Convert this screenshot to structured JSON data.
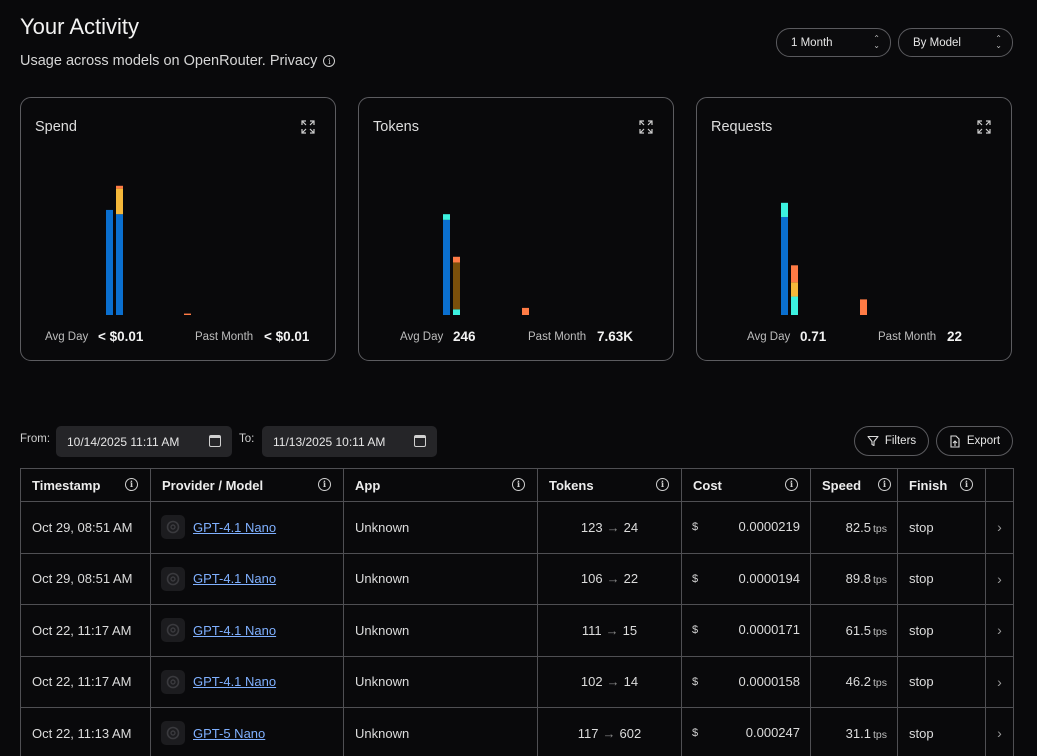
{
  "header": {
    "title": "Your Activity",
    "subtitle": "Usage across models on OpenRouter. Privacy",
    "range_select": "1 Month",
    "group_select": "By Model"
  },
  "cards": [
    {
      "title": "Spend",
      "avg_label": "Avg Day",
      "avg_value": "< $0.01",
      "past_label": "Past Month",
      "past_value": "< $0.01"
    },
    {
      "title": "Tokens",
      "avg_label": "Avg Day",
      "avg_value": "246",
      "past_label": "Past Month",
      "past_value": "7.63K"
    },
    {
      "title": "Requests",
      "avg_label": "Avg Day",
      "avg_value": "0.71",
      "past_label": "Past Month",
      "past_value": "22"
    }
  ],
  "chart_data": [
    {
      "type": "bar",
      "stacked": true,
      "series": [
        {
          "color": "#0a6fcf",
          "values": [
            0.74,
            0.71,
            0.0
          ]
        },
        {
          "color": "#f5b83a",
          "values": [
            0.0,
            0.18,
            0.0
          ]
        },
        {
          "color": "#ff7b45",
          "values": [
            0.0,
            0.02,
            0.01
          ]
        }
      ],
      "ylim": [
        0,
        1
      ]
    },
    {
      "type": "bar",
      "stacked": true,
      "series": [
        {
          "color": "#0a6fcf",
          "values": [
            0.67,
            0.0,
            0.0
          ]
        },
        {
          "color": "#3cf2e0",
          "values": [
            0.04,
            0.04,
            0.0
          ]
        },
        {
          "color": "#7a4f0a",
          "values": [
            0.0,
            0.33,
            0.0
          ]
        },
        {
          "color": "#ff7b45",
          "values": [
            0.0,
            0.04,
            0.05
          ]
        }
      ],
      "ylim": [
        0,
        1
      ]
    },
    {
      "type": "bar",
      "stacked": true,
      "series": [
        {
          "color": "#0a6fcf",
          "values": [
            0.69,
            0.0,
            0.0
          ]
        },
        {
          "color": "#3cf2e0",
          "values": [
            0.1,
            0.13,
            0.0
          ]
        },
        {
          "color": "#f5b83a",
          "values": [
            0.0,
            0.1,
            0.0
          ]
        },
        {
          "color": "#ff7b45",
          "values": [
            0.0,
            0.12,
            0.11
          ]
        }
      ],
      "ylim": [
        0,
        1
      ]
    }
  ],
  "filters": {
    "from_label": "From:",
    "from_value": "10/14/2025 11:11 AM",
    "to_label": "To:",
    "to_value": "11/13/2025 10:11 AM",
    "filters_button": "Filters",
    "export_button": "Export"
  },
  "table": {
    "headers": [
      "Timestamp",
      "Provider / Model",
      "App",
      "Tokens",
      "Cost",
      "Speed",
      "Finish"
    ],
    "rows": [
      {
        "timestamp": "Oct 29, 08:51 AM",
        "model": "GPT-4.1 Nano",
        "app": "Unknown",
        "tokens_in": "123",
        "tokens_out": "24",
        "currency": "$",
        "cost": "0.0000219",
        "speed": "82.5",
        "speed_unit": "tps",
        "finish": "stop"
      },
      {
        "timestamp": "Oct 29, 08:51 AM",
        "model": "GPT-4.1 Nano",
        "app": "Unknown",
        "tokens_in": "106",
        "tokens_out": "22",
        "currency": "$",
        "cost": "0.0000194",
        "speed": "89.8",
        "speed_unit": "tps",
        "finish": "stop"
      },
      {
        "timestamp": "Oct 22, 11:17 AM",
        "model": "GPT-4.1 Nano",
        "app": "Unknown",
        "tokens_in": "111",
        "tokens_out": "15",
        "currency": "$",
        "cost": "0.0000171",
        "speed": "61.5",
        "speed_unit": "tps",
        "finish": "stop"
      },
      {
        "timestamp": "Oct 22, 11:17 AM",
        "model": "GPT-4.1 Nano",
        "app": "Unknown",
        "tokens_in": "102",
        "tokens_out": "14",
        "currency": "$",
        "cost": "0.0000158",
        "speed": "46.2",
        "speed_unit": "tps",
        "finish": "stop"
      },
      {
        "timestamp": "Oct 22, 11:13 AM",
        "model": "GPT-5 Nano",
        "app": "Unknown",
        "tokens_in": "117",
        "tokens_out": "602",
        "currency": "$",
        "cost": "0.000247",
        "speed": "31.1",
        "speed_unit": "tps",
        "finish": "stop"
      }
    ]
  }
}
